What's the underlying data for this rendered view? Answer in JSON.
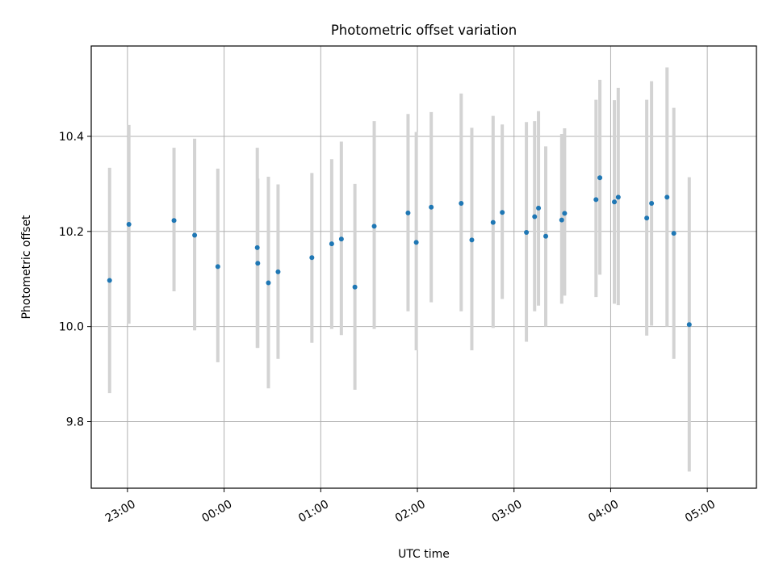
{
  "chart_data": {
    "type": "scatter",
    "title": "Photometric offset variation",
    "xlabel": "UTC time",
    "ylabel": "Photometric offset",
    "grid": true,
    "xlim_minutes": [
      -82.5,
      330.5
    ],
    "ylim": [
      9.66,
      10.59
    ],
    "x_ticks": [
      {
        "minutes": -60,
        "label": "23:00"
      },
      {
        "minutes": 0,
        "label": "00:00"
      },
      {
        "minutes": 60,
        "label": "01:00"
      },
      {
        "minutes": 120,
        "label": "02:00"
      },
      {
        "minutes": 180,
        "label": "03:00"
      },
      {
        "minutes": 240,
        "label": "04:00"
      },
      {
        "minutes": 300,
        "label": "05:00"
      }
    ],
    "y_ticks": [
      {
        "value": 9.8,
        "label": "9.8"
      },
      {
        "value": 10.0,
        "label": "10.0"
      },
      {
        "value": 10.2,
        "label": "10.2"
      },
      {
        "value": 10.4,
        "label": "10.4"
      }
    ],
    "series": [
      {
        "name": "offset",
        "marker_color": "#1f77b4",
        "errorbar_color": "#d3d3d3",
        "points": [
          {
            "t": -71.1,
            "y": 10.097,
            "lo": 9.86,
            "hi": 10.334
          },
          {
            "t": -59.1,
            "y": 10.215,
            "lo": 10.006,
            "hi": 10.424
          },
          {
            "t": -31.1,
            "y": 10.223,
            "lo": 10.074,
            "hi": 10.376
          },
          {
            "t": -18.3,
            "y": 10.192,
            "lo": 9.992,
            "hi": 10.395
          },
          {
            "t": -3.9,
            "y": 10.126,
            "lo": 9.925,
            "hi": 10.332
          },
          {
            "t": 20.6,
            "y": 10.166,
            "lo": 9.955,
            "hi": 10.376
          },
          {
            "t": 20.9,
            "y": 10.133,
            "lo": 9.955,
            "hi": 10.311
          },
          {
            "t": 27.5,
            "y": 10.092,
            "lo": 9.87,
            "hi": 10.315
          },
          {
            "t": 33.5,
            "y": 10.115,
            "lo": 9.932,
            "hi": 10.299
          },
          {
            "t": 54.5,
            "y": 10.145,
            "lo": 9.966,
            "hi": 10.323
          },
          {
            "t": 66.8,
            "y": 10.174,
            "lo": 9.995,
            "hi": 10.352
          },
          {
            "t": 72.8,
            "y": 10.184,
            "lo": 9.982,
            "hi": 10.389
          },
          {
            "t": 81.2,
            "y": 10.083,
            "lo": 9.867,
            "hi": 10.3
          },
          {
            "t": 93.2,
            "y": 10.211,
            "lo": 9.995,
            "hi": 10.432
          },
          {
            "t": 114.2,
            "y": 10.239,
            "lo": 10.032,
            "hi": 10.447
          },
          {
            "t": 119.3,
            "y": 10.177,
            "lo": 9.95,
            "hi": 10.409
          },
          {
            "t": 128.6,
            "y": 10.251,
            "lo": 10.051,
            "hi": 10.451
          },
          {
            "t": 147.2,
            "y": 10.259,
            "lo": 10.032,
            "hi": 10.49
          },
          {
            "t": 153.8,
            "y": 10.182,
            "lo": 9.95,
            "hi": 10.418
          },
          {
            "t": 167.0,
            "y": 10.219,
            "lo": 9.997,
            "hi": 10.443
          },
          {
            "t": 172.7,
            "y": 10.24,
            "lo": 10.058,
            "hi": 10.425
          },
          {
            "t": 187.7,
            "y": 10.198,
            "lo": 9.968,
            "hi": 10.43
          },
          {
            "t": 192.8,
            "y": 10.231,
            "lo": 10.032,
            "hi": 10.432
          },
          {
            "t": 195.2,
            "y": 10.249,
            "lo": 10.044,
            "hi": 10.453
          },
          {
            "t": 199.7,
            "y": 10.19,
            "lo": 10.0,
            "hi": 10.379
          },
          {
            "t": 209.6,
            "y": 10.224,
            "lo": 10.048,
            "hi": 10.405
          },
          {
            "t": 211.4,
            "y": 10.238,
            "lo": 10.065,
            "hi": 10.417
          },
          {
            "t": 230.9,
            "y": 10.267,
            "lo": 10.062,
            "hi": 10.477
          },
          {
            "t": 233.3,
            "y": 10.313,
            "lo": 10.109,
            "hi": 10.519
          },
          {
            "t": 242.3,
            "y": 10.262,
            "lo": 10.048,
            "hi": 10.476
          },
          {
            "t": 244.7,
            "y": 10.272,
            "lo": 10.045,
            "hi": 10.502
          },
          {
            "t": 262.4,
            "y": 10.228,
            "lo": 9.981,
            "hi": 10.477
          },
          {
            "t": 265.4,
            "y": 10.259,
            "lo": 10.002,
            "hi": 10.516
          },
          {
            "t": 275.0,
            "y": 10.272,
            "lo": 10.0,
            "hi": 10.545
          },
          {
            "t": 279.2,
            "y": 10.196,
            "lo": 9.932,
            "hi": 10.46
          },
          {
            "t": 288.8,
            "y": 10.004,
            "lo": 9.695,
            "hi": 10.314
          }
        ]
      }
    ]
  }
}
